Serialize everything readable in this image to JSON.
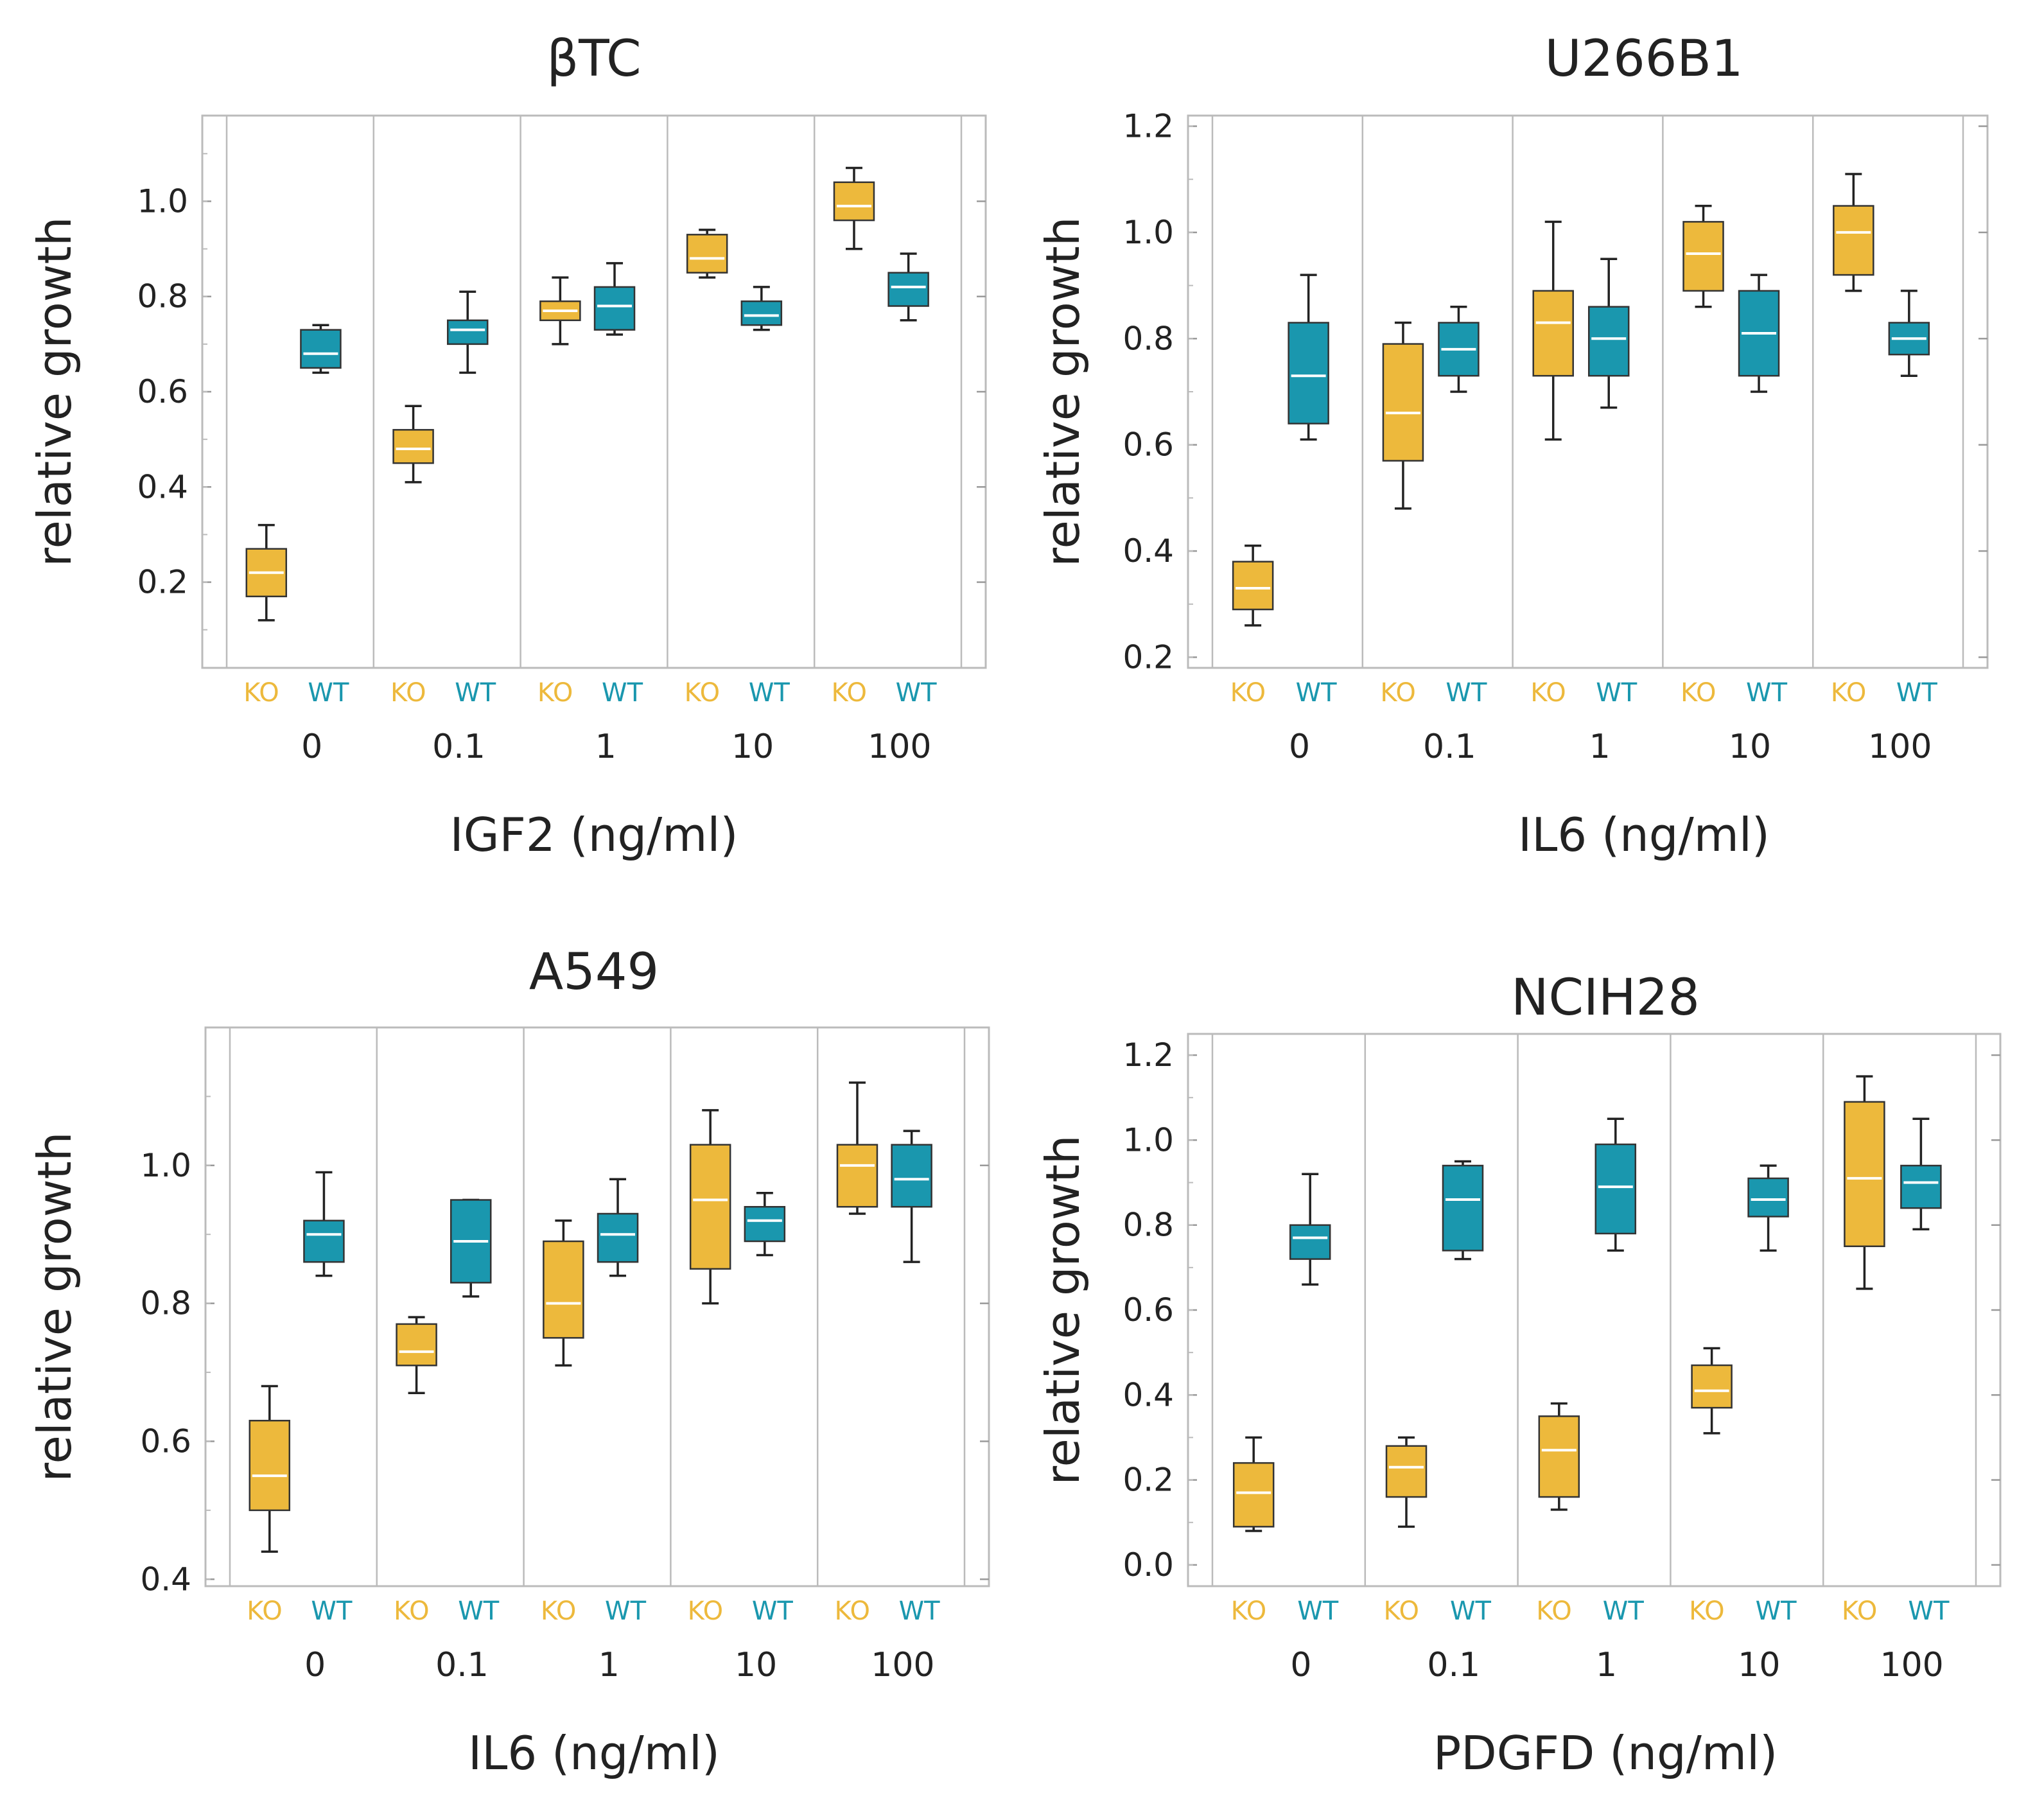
{
  "colors": {
    "ko": "#EDB93C",
    "wt": "#1A97AE",
    "ko_stroke": "#B8891E",
    "wt_stroke": "#0E6A7C",
    "median": "#ffffff",
    "whisker": "#222222",
    "frame": "#bbbbbb",
    "text": "#222222"
  },
  "chart_data": [
    {
      "type": "box",
      "title": "βTC",
      "xlabel": "IGF2 (ng/ml)",
      "ylabel": "relative growth",
      "ylim": [
        0.02,
        1.18
      ],
      "yticks": [
        0.2,
        0.4,
        0.6,
        0.8,
        1.0
      ],
      "ytick_labels": [
        "0.2",
        "0.4",
        "0.6",
        "0.8",
        "1.0"
      ],
      "group_labels": [
        "KO",
        "WT"
      ],
      "categories": [
        "0",
        "0.1",
        "1",
        "10",
        "100"
      ],
      "boxes": {
        "KO": [
          {
            "min": 0.12,
            "q1": 0.17,
            "median": 0.22,
            "q3": 0.27,
            "max": 0.32
          },
          {
            "min": 0.41,
            "q1": 0.45,
            "median": 0.48,
            "q3": 0.52,
            "max": 0.57
          },
          {
            "min": 0.7,
            "q1": 0.75,
            "median": 0.77,
            "q3": 0.79,
            "max": 0.84
          },
          {
            "min": 0.84,
            "q1": 0.85,
            "median": 0.88,
            "q3": 0.93,
            "max": 0.94
          },
          {
            "min": 0.9,
            "q1": 0.96,
            "median": 0.99,
            "q3": 1.04,
            "max": 1.07
          }
        ],
        "WT": [
          {
            "min": 0.64,
            "q1": 0.65,
            "median": 0.68,
            "q3": 0.73,
            "max": 0.74
          },
          {
            "min": 0.64,
            "q1": 0.7,
            "median": 0.73,
            "q3": 0.75,
            "max": 0.81
          },
          {
            "min": 0.72,
            "q1": 0.73,
            "median": 0.78,
            "q3": 0.82,
            "max": 0.87
          },
          {
            "min": 0.73,
            "q1": 0.74,
            "median": 0.76,
            "q3": 0.79,
            "max": 0.82
          },
          {
            "min": 0.75,
            "q1": 0.78,
            "median": 0.82,
            "q3": 0.85,
            "max": 0.89
          }
        ]
      }
    },
    {
      "type": "box",
      "title": "U266B1",
      "xlabel": "IL6 (ng/ml)",
      "ylabel": "relative growth",
      "ylim": [
        0.18,
        1.22
      ],
      "yticks": [
        0.2,
        0.4,
        0.6,
        0.8,
        1.0,
        1.2
      ],
      "ytick_labels": [
        "0.2",
        "0.4",
        "0.6",
        "0.8",
        "1.0",
        "1.2"
      ],
      "group_labels": [
        "KO",
        "WT"
      ],
      "categories": [
        "0",
        "0.1",
        "1",
        "10",
        "100"
      ],
      "boxes": {
        "KO": [
          {
            "min": 0.26,
            "q1": 0.29,
            "median": 0.33,
            "q3": 0.38,
            "max": 0.41
          },
          {
            "min": 0.48,
            "q1": 0.57,
            "median": 0.66,
            "q3": 0.79,
            "max": 0.83
          },
          {
            "min": 0.61,
            "q1": 0.73,
            "median": 0.83,
            "q3": 0.89,
            "max": 1.02
          },
          {
            "min": 0.86,
            "q1": 0.89,
            "median": 0.96,
            "q3": 1.02,
            "max": 1.05
          },
          {
            "min": 0.89,
            "q1": 0.92,
            "median": 1.0,
            "q3": 1.05,
            "max": 1.11
          }
        ],
        "WT": [
          {
            "min": 0.61,
            "q1": 0.64,
            "median": 0.73,
            "q3": 0.83,
            "max": 0.92
          },
          {
            "min": 0.7,
            "q1": 0.73,
            "median": 0.78,
            "q3": 0.83,
            "max": 0.86
          },
          {
            "min": 0.67,
            "q1": 0.73,
            "median": 0.8,
            "q3": 0.86,
            "max": 0.95
          },
          {
            "min": 0.7,
            "q1": 0.73,
            "median": 0.81,
            "q3": 0.89,
            "max": 0.92
          },
          {
            "min": 0.73,
            "q1": 0.77,
            "median": 0.8,
            "q3": 0.83,
            "max": 0.89
          }
        ]
      }
    },
    {
      "type": "box",
      "title": "A549",
      "xlabel": "IL6 (ng/ml)",
      "ylabel": "relative growth",
      "ylim": [
        0.39,
        1.2
      ],
      "yticks": [
        0.4,
        0.6,
        0.8,
        1.0
      ],
      "ytick_labels": [
        "0.4",
        "0.6",
        "0.8",
        "1.0"
      ],
      "group_labels": [
        "KO",
        "WT"
      ],
      "categories": [
        "0",
        "0.1",
        "1",
        "10",
        "100"
      ],
      "boxes": {
        "KO": [
          {
            "min": 0.44,
            "q1": 0.5,
            "median": 0.55,
            "q3": 0.63,
            "max": 0.68
          },
          {
            "min": 0.67,
            "q1": 0.71,
            "median": 0.73,
            "q3": 0.77,
            "max": 0.78
          },
          {
            "min": 0.71,
            "q1": 0.75,
            "median": 0.8,
            "q3": 0.89,
            "max": 0.92
          },
          {
            "min": 0.8,
            "q1": 0.85,
            "median": 0.95,
            "q3": 1.03,
            "max": 1.08
          },
          {
            "min": 0.93,
            "q1": 0.94,
            "median": 1.0,
            "q3": 1.03,
            "max": 1.12
          }
        ],
        "WT": [
          {
            "min": 0.84,
            "q1": 0.86,
            "median": 0.9,
            "q3": 0.92,
            "max": 0.99
          },
          {
            "min": 0.81,
            "q1": 0.83,
            "median": 0.89,
            "q3": 0.95,
            "max": 0.95
          },
          {
            "min": 0.84,
            "q1": 0.86,
            "median": 0.9,
            "q3": 0.93,
            "max": 0.98
          },
          {
            "min": 0.87,
            "q1": 0.89,
            "median": 0.92,
            "q3": 0.94,
            "max": 0.96
          },
          {
            "min": 0.86,
            "q1": 0.94,
            "median": 0.98,
            "q3": 1.03,
            "max": 1.05
          }
        ]
      }
    },
    {
      "type": "box",
      "title": "NCIH28",
      "xlabel": "PDGFD (ng/ml)",
      "ylabel": "relative growth",
      "ylim": [
        -0.05,
        1.25
      ],
      "yticks": [
        0.0,
        0.2,
        0.4,
        0.6,
        0.8,
        1.0,
        1.2
      ],
      "ytick_labels": [
        "0.0",
        "0.2",
        "0.4",
        "0.6",
        "0.8",
        "1.0",
        "1.2"
      ],
      "group_labels": [
        "KO",
        "WT"
      ],
      "categories": [
        "0",
        "0.1",
        "1",
        "10",
        "100"
      ],
      "boxes": {
        "KO": [
          {
            "min": 0.08,
            "q1": 0.09,
            "median": 0.17,
            "q3": 0.24,
            "max": 0.3
          },
          {
            "min": 0.09,
            "q1": 0.16,
            "median": 0.23,
            "q3": 0.28,
            "max": 0.3
          },
          {
            "min": 0.13,
            "q1": 0.16,
            "median": 0.27,
            "q3": 0.35,
            "max": 0.38
          },
          {
            "min": 0.31,
            "q1": 0.37,
            "median": 0.41,
            "q3": 0.47,
            "max": 0.51
          },
          {
            "min": 0.65,
            "q1": 0.75,
            "median": 0.91,
            "q3": 1.09,
            "max": 1.15
          }
        ],
        "WT": [
          {
            "min": 0.66,
            "q1": 0.72,
            "median": 0.77,
            "q3": 0.8,
            "max": 0.92
          },
          {
            "min": 0.72,
            "q1": 0.74,
            "median": 0.86,
            "q3": 0.94,
            "max": 0.95
          },
          {
            "min": 0.74,
            "q1": 0.78,
            "median": 0.89,
            "q3": 0.99,
            "max": 1.05
          },
          {
            "min": 0.74,
            "q1": 0.82,
            "median": 0.86,
            "q3": 0.91,
            "max": 0.94
          },
          {
            "min": 0.79,
            "q1": 0.84,
            "median": 0.9,
            "q3": 0.94,
            "max": 1.05
          }
        ]
      }
    }
  ]
}
